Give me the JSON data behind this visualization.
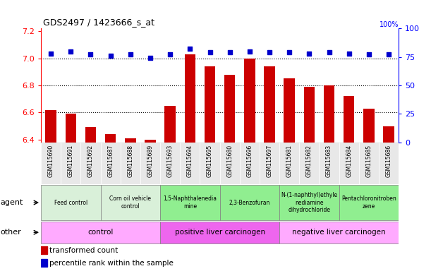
{
  "title": "GDS2497 / 1423666_s_at",
  "samples": [
    "GSM115690",
    "GSM115691",
    "GSM115692",
    "GSM115687",
    "GSM115688",
    "GSM115689",
    "GSM115693",
    "GSM115694",
    "GSM115695",
    "GSM115680",
    "GSM115696",
    "GSM115697",
    "GSM115681",
    "GSM115682",
    "GSM115683",
    "GSM115684",
    "GSM115685",
    "GSM115686"
  ],
  "bar_values": [
    6.62,
    6.59,
    6.49,
    6.44,
    6.41,
    6.4,
    6.65,
    7.03,
    6.94,
    6.88,
    7.0,
    6.94,
    6.85,
    6.79,
    6.8,
    6.72,
    6.63,
    6.5
  ],
  "percentile_values": [
    78,
    80,
    77,
    76,
    77,
    74,
    77,
    82,
    79,
    79,
    80,
    79,
    79,
    78,
    79,
    78,
    77,
    77
  ],
  "bar_color": "#cc0000",
  "dot_color": "#0000cc",
  "ylim": [
    6.38,
    7.22
  ],
  "y2lim": [
    0,
    100
  ],
  "yticks": [
    6.4,
    6.6,
    6.8,
    7.0,
    7.2
  ],
  "y2ticks": [
    0,
    25,
    50,
    75,
    100
  ],
  "grid_values": [
    6.6,
    6.8,
    7.0
  ],
  "agent_groups": [
    {
      "label": "Feed control",
      "start": 0,
      "end": 3,
      "color": "#d9f0d9"
    },
    {
      "label": "Corn oil vehicle\ncontrol",
      "start": 3,
      "end": 6,
      "color": "#d9f0d9"
    },
    {
      "label": "1,5-Naphthalenedia\nmine",
      "start": 6,
      "end": 9,
      "color": "#90ee90"
    },
    {
      "label": "2,3-Benzofuran",
      "start": 9,
      "end": 12,
      "color": "#90ee90"
    },
    {
      "label": "N-(1-naphthyl)ethyle\nnediamine\ndihydrochloride",
      "start": 12,
      "end": 15,
      "color": "#90ee90"
    },
    {
      "label": "Pentachloronitroben\nzene",
      "start": 15,
      "end": 18,
      "color": "#90ee90"
    }
  ],
  "other_groups": [
    {
      "label": "control",
      "start": 0,
      "end": 6,
      "color": "#ffaaff"
    },
    {
      "label": "positive liver carcinogen",
      "start": 6,
      "end": 12,
      "color": "#ee66ee"
    },
    {
      "label": "negative liver carcinogen",
      "start": 12,
      "end": 18,
      "color": "#ffaaff"
    }
  ],
  "agent_label": "agent",
  "other_label": "other",
  "legend_bar_label": "transformed count",
  "legend_dot_label": "percentile rank within the sample",
  "xtick_bg": "#e8e8e8"
}
